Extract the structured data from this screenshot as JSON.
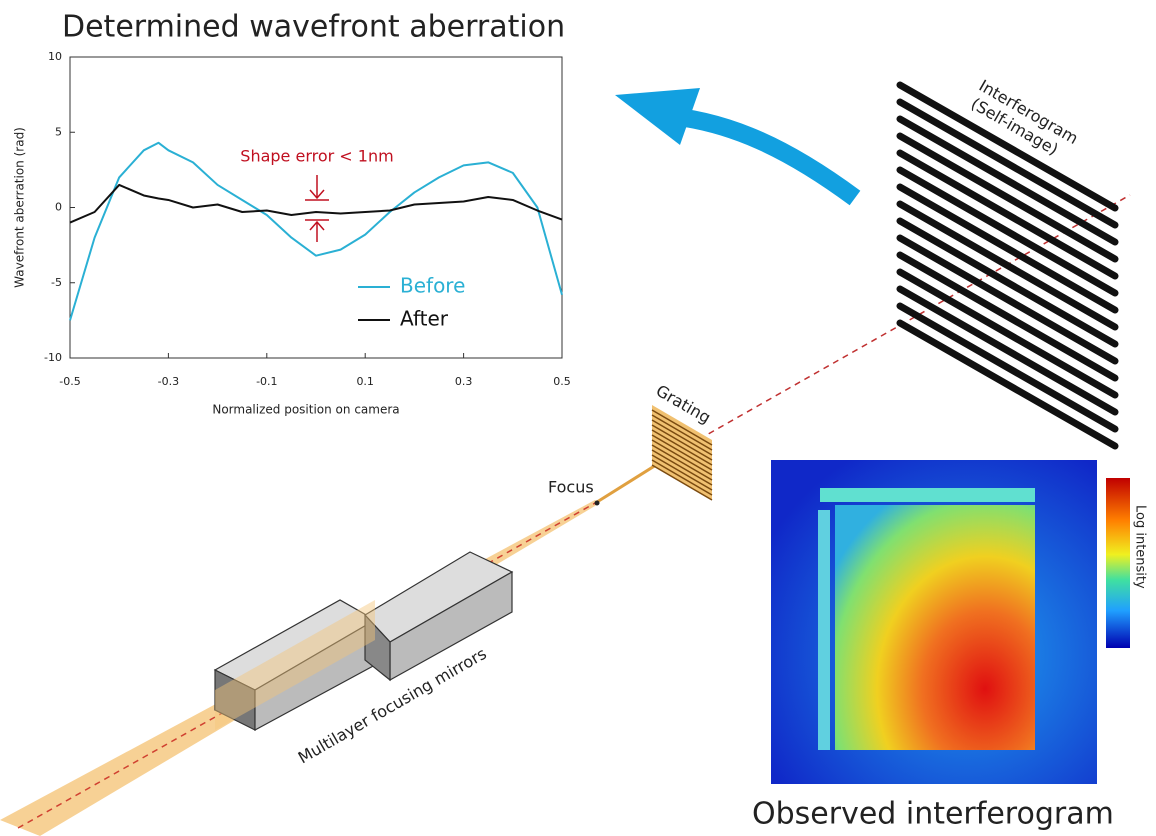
{
  "chart_data": {
    "type": "line",
    "title": "Determined wavefront aberration",
    "x_label": "Normalized position on camera",
    "y_label": "Wavefront aberration (rad)",
    "annotation": "Shape error < 1nm",
    "x": [
      -0.5,
      -0.45,
      -0.4,
      -0.35,
      -0.32,
      -0.3,
      -0.25,
      -0.2,
      -0.15,
      -0.1,
      -0.05,
      0,
      0.05,
      0.1,
      0.15,
      0.2,
      0.25,
      0.3,
      0.35,
      0.4,
      0.45,
      0.5
    ],
    "series": [
      {
        "name": "Before",
        "color": "#2ab0d4",
        "values": [
          -7.5,
          -2,
          2,
          3.8,
          4.3,
          3.8,
          3,
          1.5,
          0.5,
          -0.5,
          -2,
          -3.2,
          -2.8,
          -1.8,
          -0.3,
          1,
          2,
          2.8,
          3,
          2.3,
          0,
          -5.8
        ]
      },
      {
        "name": "After",
        "color": "#111111",
        "values": [
          -1,
          -0.3,
          1.5,
          0.8,
          0.6,
          0.5,
          0,
          0.2,
          -0.3,
          -0.2,
          -0.5,
          -0.3,
          -0.4,
          -0.3,
          -0.2,
          0.2,
          0.3,
          0.4,
          0.7,
          0.5,
          -0.2,
          -0.8
        ]
      }
    ],
    "xlim": [
      -0.5,
      0.5
    ],
    "xticks": [
      -0.5,
      -0.3,
      -0.1,
      0.1,
      0.3,
      0.5
    ],
    "ylim": [
      -10,
      10
    ],
    "yticks": [
      -10,
      -5,
      0,
      5,
      10
    ]
  },
  "diagram": {
    "interferogram": [
      "Interferogram",
      "(Self-image)"
    ],
    "grating": "Grating",
    "focus": "Focus",
    "mirrors": "Multilayer focusing mirrors",
    "colorbar": "Log intensity",
    "observed": "Observed interferogram"
  }
}
